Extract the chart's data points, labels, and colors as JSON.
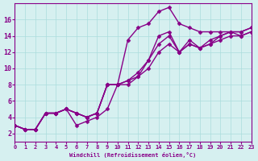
{
  "background_color": "#d6f0f0",
  "line_color": "#880088",
  "marker": "D",
  "markersize": 2.5,
  "linewidth": 1.0,
  "xlabel": "Windchill (Refroidissement éolien,°C)",
  "xlim": [
    0,
    23
  ],
  "ylim": [
    1,
    18
  ],
  "yticks": [
    2,
    4,
    6,
    8,
    10,
    12,
    14,
    16
  ],
  "xticks": [
    0,
    1,
    2,
    3,
    4,
    5,
    6,
    7,
    8,
    9,
    10,
    11,
    12,
    13,
    14,
    15,
    16,
    17,
    18,
    19,
    20,
    21,
    22,
    23
  ],
  "series": [
    {
      "x": [
        0,
        1,
        2,
        3,
        4,
        5,
        6,
        7,
        8,
        9,
        10,
        11,
        12,
        13,
        14,
        15,
        16,
        17,
        18,
        19,
        20,
        21,
        22,
        23
      ],
      "y": [
        3,
        2.5,
        2.5,
        4.5,
        4.5,
        5,
        3,
        3.5,
        4,
        5,
        8,
        13.5,
        15,
        15.5,
        17,
        17.5,
        15.5,
        15,
        14.5,
        14.5,
        14.5,
        14.5,
        14,
        14.5
      ]
    },
    {
      "x": [
        0,
        1,
        2,
        3,
        4,
        5,
        6,
        7,
        8,
        9,
        10,
        11,
        12,
        13,
        14,
        15,
        16,
        17,
        18,
        19,
        20,
        21,
        22,
        23
      ],
      "y": [
        3,
        2.5,
        2.5,
        4.5,
        4.5,
        5,
        4.5,
        4,
        4.5,
        8,
        8,
        8,
        9,
        11,
        14,
        14.5,
        12,
        13,
        12.5,
        13,
        13.5,
        14,
        14,
        14.5
      ]
    },
    {
      "x": [
        0,
        1,
        2,
        3,
        4,
        5,
        6,
        7,
        8,
        9,
        10,
        11,
        12,
        13,
        14,
        15,
        16,
        17,
        18,
        19,
        20,
        21,
        22,
        23
      ],
      "y": [
        3,
        2.5,
        2.5,
        4.5,
        4.5,
        5,
        4.5,
        4,
        4.5,
        8,
        8,
        8.5,
        9,
        10,
        12,
        13,
        12,
        13,
        12.5,
        13.5,
        14,
        14.5,
        14.5,
        15
      ]
    },
    {
      "x": [
        0,
        1,
        2,
        3,
        4,
        5,
        6,
        7,
        8,
        9,
        10,
        11,
        12,
        13,
        14,
        15,
        16,
        17,
        18,
        19,
        20,
        21,
        22,
        23
      ],
      "y": [
        3,
        2.5,
        2.5,
        4.5,
        4.5,
        5,
        4.5,
        4,
        4.5,
        8,
        8,
        8.5,
        9.5,
        11,
        13,
        14,
        12,
        13.5,
        12.5,
        13,
        14,
        14.5,
        14.5,
        15
      ]
    }
  ]
}
